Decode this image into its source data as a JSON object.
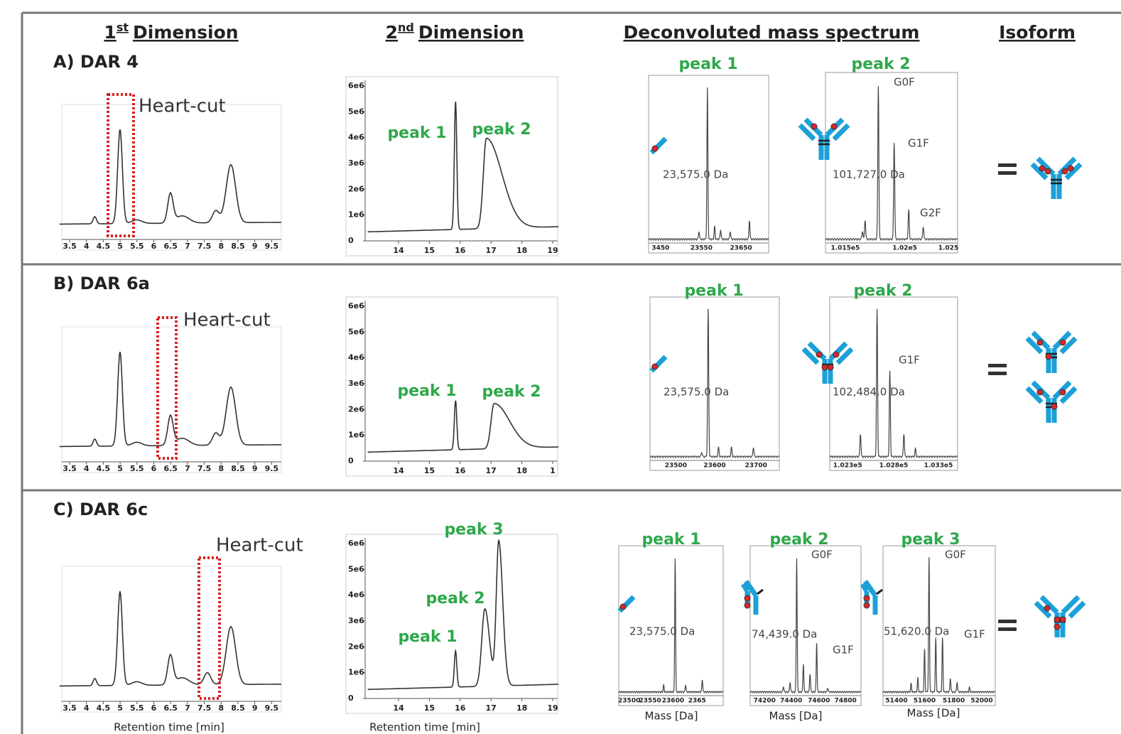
{
  "columns": [
    {
      "prefix": "1",
      "superscript": "st",
      "text": "Dimension"
    },
    {
      "prefix": "2",
      "superscript": "nd",
      "text": "Dimension"
    },
    {
      "text": "Deconvoluted mass spectrum"
    },
    {
      "text": "Isoform"
    }
  ],
  "rows": [
    {
      "label": "A) DAR 4",
      "first_dimension": {
        "annotation": "Heart-cut",
        "xticks": [
          "3.5",
          "4",
          "4.5",
          "5",
          "5.5",
          "6",
          "6.5",
          "7",
          "7.5",
          "8",
          "8.5",
          "9",
          "9.5"
        ]
      },
      "second_dimension": {
        "yticks": [
          "0",
          "1e6",
          "2e6",
          "3e6",
          "4e6",
          "5e6",
          "6e6"
        ],
        "xticks": [
          "14",
          "15",
          "16",
          "17",
          "18",
          "19"
        ],
        "peaks": [
          "peak 1",
          "peak 2"
        ]
      },
      "spectra": [
        {
          "title": "peak 1",
          "mass": "23,575.0 Da",
          "xticks": [
            "3450",
            "23550",
            "23650"
          ]
        },
        {
          "title": "peak 2",
          "mass": "101,727.0 Da",
          "xticks": [
            "1.015e5",
            "1.02e5",
            "1.025"
          ],
          "glycoforms": [
            "G0F",
            "G1F",
            "G2F"
          ]
        }
      ]
    },
    {
      "label": "B) DAR 6a",
      "first_dimension": {
        "annotation": "Heart-cut",
        "xticks": [
          "3.5",
          "4",
          "4.5",
          "5",
          "5.5",
          "6",
          "6.5",
          "7",
          "7.5",
          "8",
          "8.5",
          "9",
          "9.5"
        ]
      },
      "second_dimension": {
        "yticks": [
          "0",
          "1e6",
          "2e6",
          "3e6",
          "4e6",
          "5e6",
          "6e6"
        ],
        "xticks": [
          "14",
          "15",
          "16",
          "17",
          "18",
          "1"
        ],
        "peaks": [
          "peak 1",
          "peak 2"
        ]
      },
      "spectra": [
        {
          "title": "peak 1",
          "mass": "23,575.0 Da",
          "xticks": [
            "23500",
            "23600",
            "23700"
          ]
        },
        {
          "title": "peak 2",
          "mass": "102,484.0 Da",
          "xticks": [
            "1.023e5",
            "1.028e5",
            "1.033e5"
          ],
          "glycoforms": [
            "G1F"
          ]
        }
      ]
    },
    {
      "label": "C) DAR 6c",
      "first_dimension": {
        "annotation": "Heart-cut",
        "xticks": [
          "3.5",
          "4",
          "4.5",
          "5",
          "5.5",
          "6",
          "6.5",
          "7",
          "7.5",
          "8",
          "8.5",
          "9",
          "9.5"
        ]
      },
      "second_dimension": {
        "yticks": [
          "0",
          "1e6",
          "2e6",
          "3e6",
          "4e6",
          "5e6",
          "6e6"
        ],
        "xticks": [
          "14",
          "15",
          "16",
          "17",
          "18",
          "19"
        ],
        "peaks": [
          "peak 1",
          "peak 2",
          "peak 3"
        ]
      },
      "spectra": [
        {
          "title": "peak 1",
          "mass": "23,575.0 Da",
          "xticks": [
            "23500",
            "23550",
            "23600",
            "2365"
          ]
        },
        {
          "title": "peak 2",
          "mass": "74,439.0 Da",
          "xticks": [
            "74200",
            "74400",
            "74600",
            "74800"
          ],
          "glycoforms": [
            "G0F",
            "G1F"
          ]
        },
        {
          "title": "peak 3",
          "mass": "51,620.0 Da",
          "xticks": [
            "51400",
            "51600",
            "51800",
            "52000"
          ],
          "glycoforms": [
            "G0F",
            "G1F"
          ]
        }
      ]
    }
  ],
  "axis_labels": {
    "retention_time": "Retention time [min]",
    "mass": "Mass [Da]"
  }
}
